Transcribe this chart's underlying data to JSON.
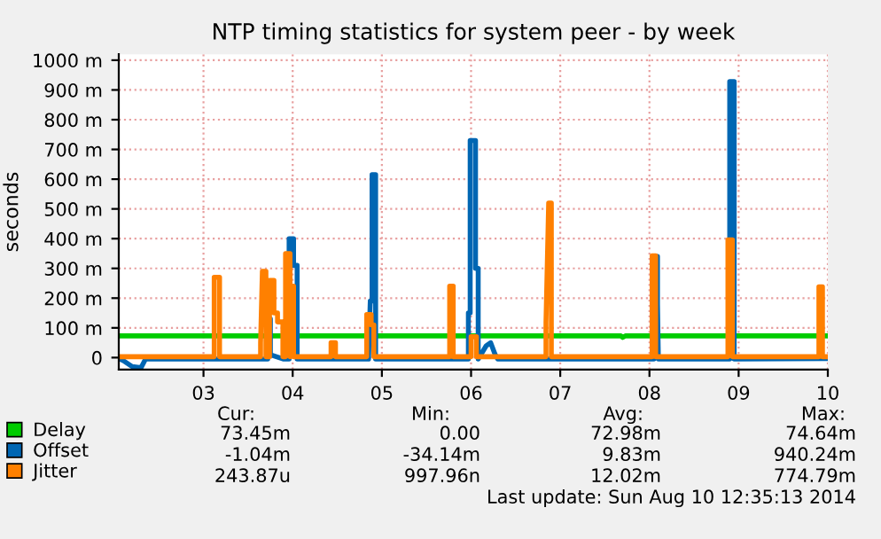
{
  "chart_data": {
    "type": "line",
    "title": "NTP timing statistics for system peer - by week",
    "ylabel": "seconds",
    "xlim": [
      2.05,
      10.0
    ],
    "ylim": [
      -40,
      1020
    ],
    "xticks": [
      {
        "value": 3,
        "label": "03"
      },
      {
        "value": 4,
        "label": "04"
      },
      {
        "value": 5,
        "label": "05"
      },
      {
        "value": 6,
        "label": "06"
      },
      {
        "value": 7,
        "label": "07"
      },
      {
        "value": 8,
        "label": "08"
      },
      {
        "value": 9,
        "label": "09"
      },
      {
        "value": 10,
        "label": "10"
      }
    ],
    "yticks": [
      0,
      {
        "value": 100,
        "label": "100 m"
      },
      {
        "value": 200,
        "label": "200 m"
      },
      {
        "value": 300,
        "label": "300 m"
      },
      {
        "value": 400,
        "label": "400 m"
      },
      {
        "value": 500,
        "label": "500 m"
      },
      {
        "value": 600,
        "label": "600 m"
      },
      {
        "value": 700,
        "label": "700 m"
      },
      {
        "value": 800,
        "label": "800 m"
      },
      {
        "value": 900,
        "label": "900 m"
      },
      {
        "value": 1000,
        "label": "1000 m"
      }
    ],
    "grid": true,
    "legend": "bottom left",
    "series": [
      {
        "name": "Delay",
        "color": "#00cc00",
        "x": [
          2.05,
          7.68,
          7.7,
          7.73,
          10.0
        ],
        "values": [
          73,
          73,
          68,
          73,
          73
        ]
      },
      {
        "name": "Offset",
        "color": "#0066b3",
        "x": [
          2.05,
          2.1,
          2.2,
          2.3,
          2.35,
          2.6,
          3.72,
          3.72,
          3.75,
          3.75,
          3.9,
          3.96,
          3.96,
          4.01,
          4.01,
          4.05,
          4.05,
          4.85,
          4.87,
          4.89,
          4.89,
          4.93,
          4.93,
          5.97,
          5.97,
          5.99,
          5.99,
          6.05,
          6.05,
          6.08,
          6.08,
          6.17,
          6.22,
          6.27,
          6.3,
          8.05,
          8.07,
          8.09,
          8.09,
          8.1,
          8.9,
          8.9,
          8.95,
          8.95,
          10.0
        ],
        "values": [
          -3,
          -10,
          -30,
          -34,
          -5,
          -5,
          -5,
          130,
          130,
          10,
          -5,
          -5,
          400,
          400,
          310,
          310,
          -5,
          -5,
          190,
          190,
          615,
          615,
          -5,
          -5,
          150,
          150,
          730,
          730,
          300,
          300,
          -5,
          40,
          50,
          10,
          -5,
          -5,
          340,
          340,
          180,
          -5,
          -5,
          928,
          928,
          -5,
          -3
        ]
      },
      {
        "name": "Jitter",
        "color": "#ff8000",
        "x": [
          2.05,
          3.12,
          3.12,
          3.18,
          3.18,
          3.64,
          3.64,
          3.66,
          3.7,
          3.7,
          3.74,
          3.74,
          3.79,
          3.79,
          3.83,
          3.83,
          3.89,
          3.89,
          3.92,
          3.92,
          3.97,
          3.97,
          3.98,
          4.01,
          4.01,
          4.43,
          4.43,
          4.48,
          4.48,
          4.83,
          4.83,
          4.88,
          4.88,
          4.91,
          4.91,
          5.76,
          5.76,
          5.8,
          5.8,
          6.0,
          6.0,
          6.06,
          6.06,
          6.84,
          6.84,
          6.87,
          6.9,
          6.9,
          8.03,
          8.03,
          8.07,
          8.07,
          8.88,
          8.88,
          8.93,
          8.93,
          9.9,
          9.9,
          9.94,
          9.94,
          10.0
        ],
        "values": [
          3,
          3,
          270,
          270,
          3,
          3,
          50,
          290,
          290,
          3,
          3,
          260,
          260,
          150,
          150,
          120,
          120,
          3,
          3,
          350,
          350,
          3,
          240,
          240,
          3,
          3,
          50,
          50,
          3,
          3,
          145,
          145,
          110,
          110,
          3,
          3,
          240,
          240,
          3,
          3,
          70,
          70,
          3,
          3,
          120,
          520,
          520,
          3,
          3,
          342,
          342,
          3,
          3,
          396,
          396,
          3,
          3,
          238,
          238,
          3,
          3
        ]
      }
    ],
    "annotations": [
      "Cur:",
      "Min:",
      "Avg:",
      "Max:",
      "73.45m",
      "0.00",
      "72.98m",
      "74.64m",
      "-1.04m",
      "-34.14m",
      "9.83m",
      "940.24m",
      "243.87u",
      "997.96n",
      "12.02m",
      "774.79m",
      "Last update: Sun Aug 10 12:35:13 2014"
    ]
  }
}
